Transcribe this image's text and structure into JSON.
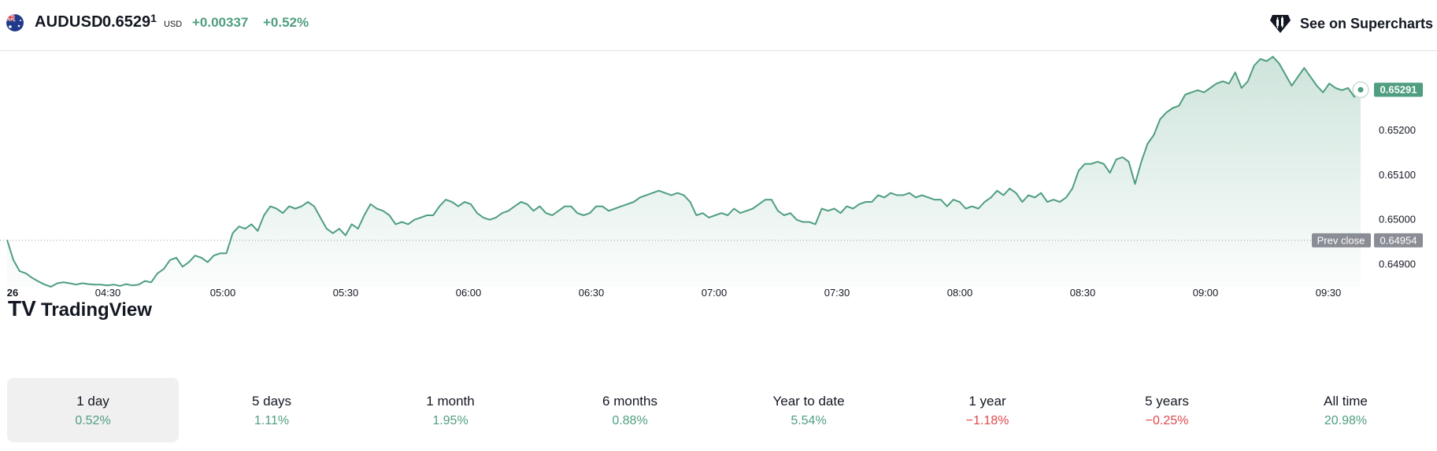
{
  "header": {
    "symbol": "AUDUSD",
    "price_main": "0.6529",
    "price_last": "1",
    "currency": "USD",
    "change": "+0.00337",
    "change_pct": "+0.52%",
    "supercharts_label": "See on Supercharts",
    "flag_icon": "australia-flag-icon",
    "positive_color": "#4f9e7f",
    "negative_color": "#e0474c"
  },
  "chart_data": {
    "type": "area",
    "x_ticks": [
      "26",
      "04:30",
      "05:00",
      "05:30",
      "06:00",
      "06:30",
      "07:00",
      "07:30",
      "08:00",
      "08:30",
      "09:00",
      "09:30"
    ],
    "y_ticks": [
      "0.64900",
      "0.65000",
      "0.65100",
      "0.65200"
    ],
    "ylim": [
      0.6485,
      0.6536
    ],
    "last_price_label": "0.65291",
    "prev_close_label": "Prev close",
    "prev_close_value": "0.64954",
    "watermark": "TradingView",
    "line_color": "#4f9e7f",
    "series": [
      {
        "values": [
          0.64955,
          0.6491,
          0.64885,
          0.6488,
          0.6487,
          0.64862,
          0.64855,
          0.6485,
          0.64858,
          0.6486,
          0.64858,
          0.64855,
          0.64858,
          0.64856,
          0.64855,
          0.64855,
          0.64853,
          0.64855,
          0.64852,
          0.64856,
          0.64853,
          0.64855,
          0.64863,
          0.6486,
          0.6488,
          0.6489,
          0.6491,
          0.64915,
          0.64895,
          0.64905,
          0.6492,
          0.64915,
          0.64905,
          0.6492,
          0.64925,
          0.64925,
          0.6497,
          0.64985,
          0.6498,
          0.6499,
          0.64975,
          0.6501,
          0.6503,
          0.65025,
          0.65015,
          0.6503,
          0.65025,
          0.6503,
          0.6504,
          0.6503,
          0.65005,
          0.6498,
          0.6497,
          0.6498,
          0.64965,
          0.6499,
          0.6498,
          0.6501,
          0.65035,
          0.65025,
          0.6502,
          0.6501,
          0.6499,
          0.64995,
          0.6499,
          0.65,
          0.65005,
          0.6501,
          0.6501,
          0.6503,
          0.65045,
          0.6504,
          0.6503,
          0.6504,
          0.65035,
          0.65015,
          0.65005,
          0.65,
          0.65005,
          0.65015,
          0.6502,
          0.6503,
          0.6504,
          0.65035,
          0.6502,
          0.6503,
          0.65015,
          0.6501,
          0.6502,
          0.6503,
          0.6503,
          0.65015,
          0.6501,
          0.65015,
          0.6503,
          0.6503,
          0.6502,
          0.65025,
          0.6503,
          0.65035,
          0.6504,
          0.6505,
          0.65055,
          0.6506,
          0.65065,
          0.6506,
          0.65055,
          0.6506,
          0.65055,
          0.6504,
          0.6501,
          0.65015,
          0.65005,
          0.6501,
          0.65015,
          0.6501,
          0.65025,
          0.65015,
          0.6502,
          0.65025,
          0.65035,
          0.65045,
          0.65045,
          0.6502,
          0.6501,
          0.65015,
          0.65,
          0.64995,
          0.64995,
          0.6499,
          0.65025,
          0.6502,
          0.65025,
          0.65015,
          0.6503,
          0.65025,
          0.65035,
          0.6504,
          0.6504,
          0.65055,
          0.6505,
          0.6506,
          0.65055,
          0.65055,
          0.6506,
          0.6505,
          0.65055,
          0.6505,
          0.65045,
          0.65045,
          0.6503,
          0.65045,
          0.6504,
          0.65025,
          0.6503,
          0.65025,
          0.6504,
          0.6505,
          0.65065,
          0.65055,
          0.6507,
          0.6506,
          0.6504,
          0.65055,
          0.6505,
          0.6506,
          0.6504,
          0.65045,
          0.6504,
          0.6505,
          0.6507,
          0.6511,
          0.65125,
          0.65125,
          0.6513,
          0.65125,
          0.65105,
          0.65135,
          0.6514,
          0.6513,
          0.6508,
          0.6513,
          0.6517,
          0.6519,
          0.65225,
          0.6524,
          0.6525,
          0.65255,
          0.6528,
          0.65285,
          0.6529,
          0.65285,
          0.65295,
          0.65305,
          0.6531,
          0.65305,
          0.6533,
          0.65295,
          0.6531,
          0.65345,
          0.6536,
          0.65355,
          0.65365,
          0.6535,
          0.65325,
          0.653,
          0.6532,
          0.6534,
          0.6532,
          0.653,
          0.65285,
          0.65305,
          0.65295,
          0.6529,
          0.65295,
          0.65275,
          0.65291
        ]
      }
    ]
  },
  "periods": [
    {
      "label": "1 day",
      "value": "0.52%"
    },
    {
      "label": "5 days",
      "value": "1.11%"
    },
    {
      "label": "1 month",
      "value": "1.95%"
    },
    {
      "label": "6 months",
      "value": "0.88%"
    },
    {
      "label": "Year to date",
      "value": "5.54%"
    },
    {
      "label": "1 year",
      "value": "−1.18%"
    },
    {
      "label": "5 years",
      "value": "−0.25%"
    },
    {
      "label": "All time",
      "value": "20.98%"
    }
  ]
}
